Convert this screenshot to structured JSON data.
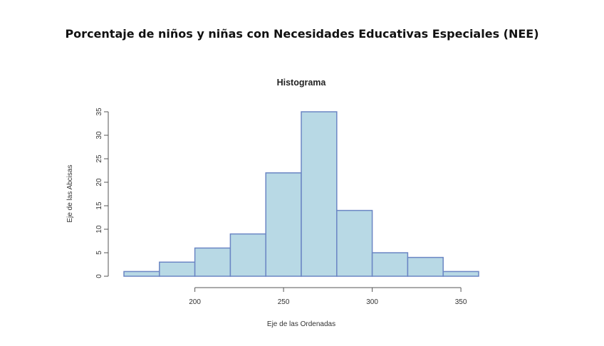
{
  "page_title": "Porcentaje de niños y niñas con Necesidades Educativas Especiales (NEE)",
  "colors": {
    "bar_fill": "#b8d9e5",
    "bar_stroke": "#6b86c4",
    "axis": "#555555"
  },
  "chart_data": {
    "type": "bar",
    "title": "Histograma",
    "xlabel": "Eje de las Ordenadas",
    "ylabel": "Eje de las Abcisas",
    "bins": [
      [
        160,
        180
      ],
      [
        180,
        200
      ],
      [
        200,
        220
      ],
      [
        220,
        240
      ],
      [
        240,
        260
      ],
      [
        260,
        280
      ],
      [
        280,
        300
      ],
      [
        300,
        320
      ],
      [
        320,
        340
      ],
      [
        340,
        360
      ]
    ],
    "values": [
      1,
      3,
      6,
      9,
      22,
      35,
      14,
      5,
      4,
      1
    ],
    "xlim": [
      160,
      360
    ],
    "ylim": [
      0,
      35
    ],
    "xticks": [
      200,
      250,
      300,
      350
    ],
    "yticks": [
      0,
      5,
      10,
      15,
      20,
      25,
      30,
      35
    ],
    "grid": false
  }
}
